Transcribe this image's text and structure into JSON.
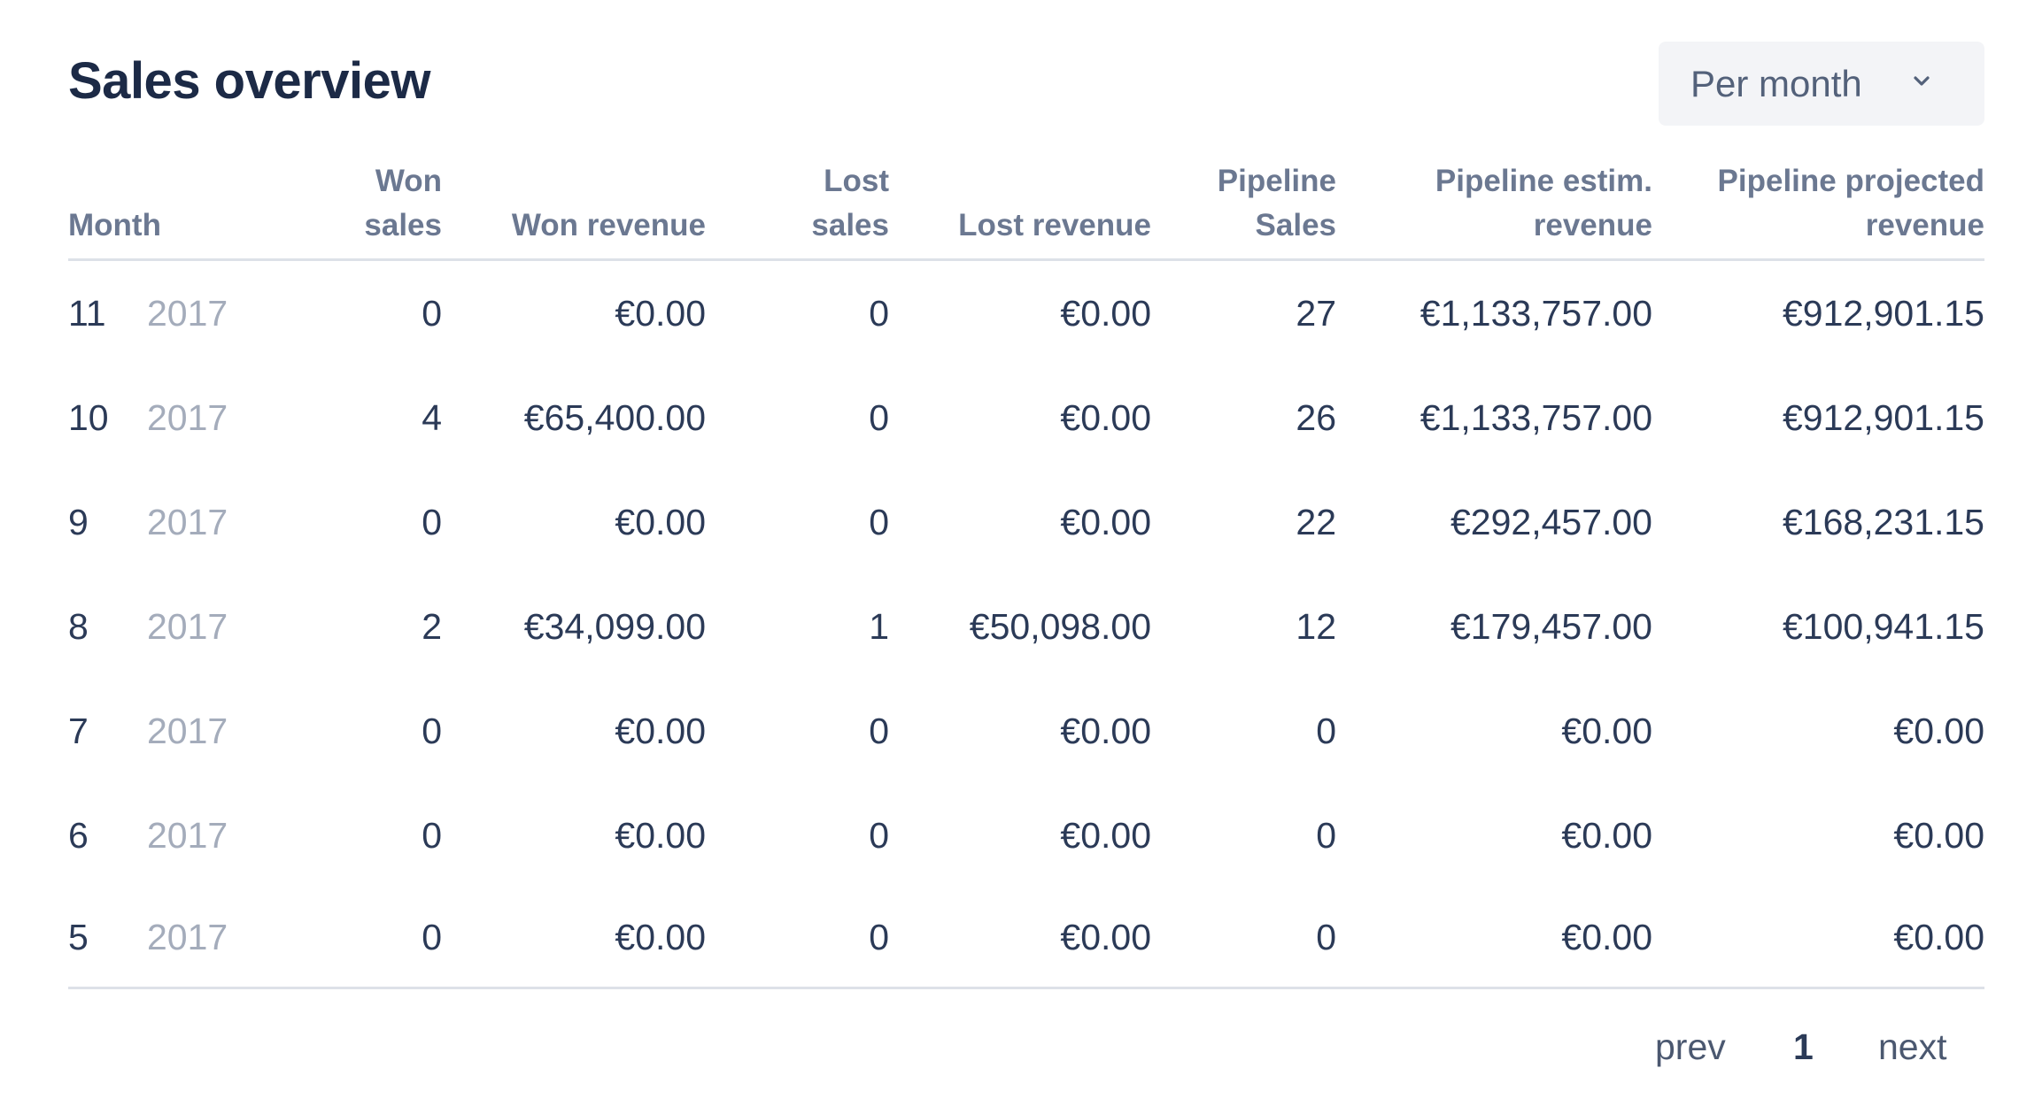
{
  "header": {
    "title": "Sales overview",
    "period_select": {
      "value": "Per month",
      "icon": "chevron-down-icon"
    }
  },
  "table": {
    "columns": {
      "month": "Month",
      "won_sales": [
        "Won",
        "sales"
      ],
      "won_revenue": "Won revenue",
      "lost_sales": [
        "Lost",
        "sales"
      ],
      "lost_revenue": "Lost revenue",
      "pipeline_sales": [
        "Pipeline",
        "Sales"
      ],
      "pipeline_estim_revenue": [
        "Pipeline estim.",
        "revenue"
      ],
      "pipeline_projected_revenue": [
        "Pipeline projected",
        "revenue"
      ]
    },
    "rows": [
      {
        "month": "11",
        "year": "2017",
        "won_sales": "0",
        "won_revenue": "€0.00",
        "lost_sales": "0",
        "lost_revenue": "€0.00",
        "pipeline_sales": "27",
        "pipeline_estim_revenue": "€1,133,757.00",
        "pipeline_projected_revenue": "€912,901.15"
      },
      {
        "month": "10",
        "year": "2017",
        "won_sales": "4",
        "won_revenue": "€65,400.00",
        "lost_sales": "0",
        "lost_revenue": "€0.00",
        "pipeline_sales": "26",
        "pipeline_estim_revenue": "€1,133,757.00",
        "pipeline_projected_revenue": "€912,901.15"
      },
      {
        "month": "9",
        "year": "2017",
        "won_sales": "0",
        "won_revenue": "€0.00",
        "lost_sales": "0",
        "lost_revenue": "€0.00",
        "pipeline_sales": "22",
        "pipeline_estim_revenue": "€292,457.00",
        "pipeline_projected_revenue": "€168,231.15"
      },
      {
        "month": "8",
        "year": "2017",
        "won_sales": "2",
        "won_revenue": "€34,099.00",
        "lost_sales": "1",
        "lost_revenue": "€50,098.00",
        "pipeline_sales": "12",
        "pipeline_estim_revenue": "€179,457.00",
        "pipeline_projected_revenue": "€100,941.15"
      },
      {
        "month": "7",
        "year": "2017",
        "won_sales": "0",
        "won_revenue": "€0.00",
        "lost_sales": "0",
        "lost_revenue": "€0.00",
        "pipeline_sales": "0",
        "pipeline_estim_revenue": "€0.00",
        "pipeline_projected_revenue": "€0.00"
      },
      {
        "month": "6",
        "year": "2017",
        "won_sales": "0",
        "won_revenue": "€0.00",
        "lost_sales": "0",
        "lost_revenue": "€0.00",
        "pipeline_sales": "0",
        "pipeline_estim_revenue": "€0.00",
        "pipeline_projected_revenue": "€0.00"
      },
      {
        "month": "5",
        "year": "2017",
        "won_sales": "0",
        "won_revenue": "€0.00",
        "lost_sales": "0",
        "lost_revenue": "€0.00",
        "pipeline_sales": "0",
        "pipeline_estim_revenue": "€0.00",
        "pipeline_projected_revenue": "€0.00"
      }
    ]
  },
  "pagination": {
    "prev_label": "prev",
    "current_page": "1",
    "next_label": "next"
  },
  "colors": {
    "positive": "#34b36e",
    "negative": "#e0402b",
    "text": "#2b3a57",
    "muted": "#a4acbb"
  }
}
